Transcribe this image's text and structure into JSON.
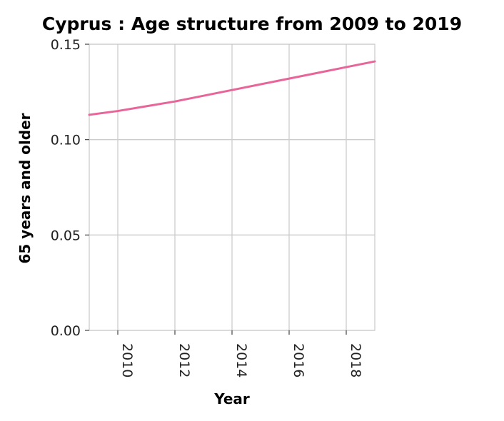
{
  "chart_data": {
    "type": "line",
    "title": "Cyprus : Age structure from 2009 to 2019",
    "xlabel": "Year",
    "ylabel": "65 years and older",
    "xlim": [
      2009,
      2019
    ],
    "ylim": [
      0,
      0.15
    ],
    "x_ticks": [
      2010,
      2012,
      2014,
      2016,
      2018
    ],
    "x_tick_labels": [
      "2010",
      "2012",
      "2014",
      "2016",
      "2018"
    ],
    "y_ticks": [
      0,
      0.05,
      0.1,
      0.15
    ],
    "y_tick_labels": [
      "0.00",
      "0.05",
      "0.10",
      "0.15"
    ],
    "grid": true,
    "line_color": "#e8659a",
    "series": [
      {
        "x": [
          2009,
          2010,
          2011,
          2012,
          2013,
          2014,
          2015,
          2016,
          2017,
          2018,
          2019
        ],
        "values": [
          0.113,
          0.115,
          0.1175,
          0.12,
          0.123,
          0.126,
          0.129,
          0.132,
          0.135,
          0.138,
          0.141
        ]
      }
    ]
  }
}
